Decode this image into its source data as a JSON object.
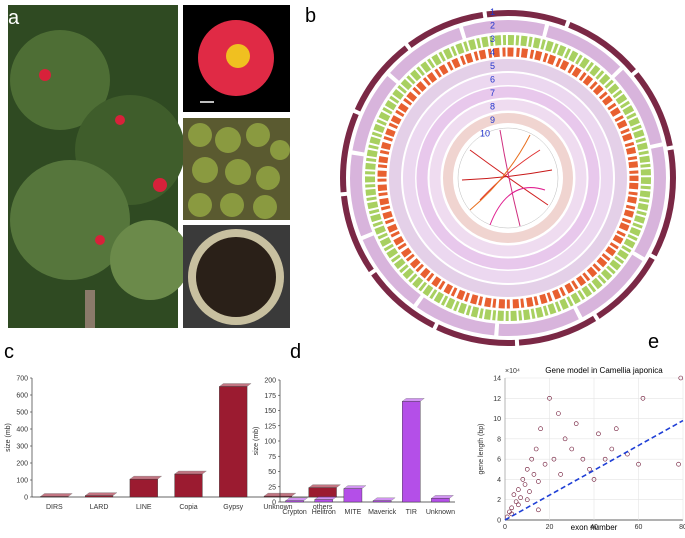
{
  "panel_labels": [
    "a",
    "b",
    "c",
    "d",
    "e"
  ],
  "circos": {
    "track_labels": [
      "1",
      "2",
      "3",
      "4",
      "5",
      "6",
      "7",
      "8",
      "9",
      "10"
    ]
  },
  "chart_data": [
    {
      "type": "bar",
      "categories": [
        "DIRS",
        "LARD",
        "LINE",
        "Copia",
        "Gypsy",
        "Unknown",
        "others"
      ],
      "values": [
        3,
        8,
        105,
        135,
        650,
        5,
        55
      ],
      "color": "#9b1b30",
      "ylabel": "size (mb)",
      "ylim": [
        0,
        700
      ],
      "yticks": [
        0,
        100,
        200,
        300,
        400,
        500,
        600,
        700
      ]
    },
    {
      "type": "bar",
      "categories": [
        "Crypton",
        "Helitron",
        "MITE",
        "Maverick",
        "TIR",
        "Unknown"
      ],
      "values": [
        2,
        4,
        22,
        2,
        165,
        6
      ],
      "color": "#b44fe8",
      "ylabel": "size (mb)",
      "ylim": [
        0,
        200
      ],
      "yticks": [
        0,
        25,
        50,
        75,
        100,
        125,
        150,
        175,
        200
      ]
    },
    {
      "type": "scatter",
      "title": "Gene model in Camellia japonica",
      "xlabel": "exon number",
      "ylabel": "gene length (bp)",
      "y_multiplier": "×10⁴",
      "color": "#6b1030",
      "grid": true,
      "x": [
        1,
        2,
        3,
        4,
        5,
        6,
        7,
        8,
        9,
        10,
        11,
        12,
        13,
        14,
        15,
        16,
        18,
        20,
        22,
        24,
        25,
        27,
        30,
        32,
        35,
        38,
        40,
        42,
        45,
        48,
        50,
        55,
        60,
        62,
        78,
        79,
        3,
        6,
        10,
        15
      ],
      "y": [
        0.3,
        0.8,
        1.2,
        2.5,
        1.8,
        3,
        2.2,
        4,
        3.5,
        5,
        2.8,
        6,
        4.5,
        7,
        3.8,
        9,
        5.5,
        12,
        6,
        10.5,
        4.5,
        8,
        7,
        9.5,
        6,
        5,
        4,
        8.5,
        6,
        7,
        9,
        6.5,
        5.5,
        12,
        5.5,
        14,
        0.6,
        1.5,
        2,
        1
      ],
      "fit": {
        "x": [
          0,
          80
        ],
        "y": [
          0,
          9.8
        ],
        "color": "#1f3fd6"
      },
      "xlim": [
        0,
        80
      ],
      "xticks": [
        0,
        20,
        40,
        60,
        80
      ],
      "ylim": [
        0,
        14
      ],
      "yticks": [
        0,
        2,
        4,
        6,
        8,
        10,
        12,
        14
      ]
    }
  ]
}
